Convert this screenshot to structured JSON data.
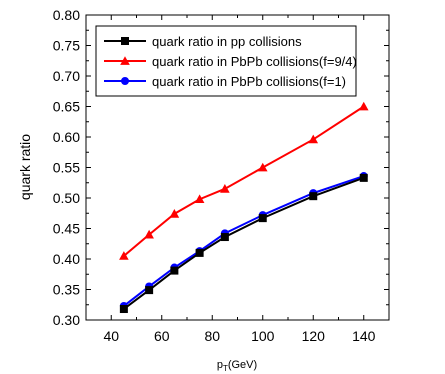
{
  "chart_data": {
    "type": "line",
    "xlabel_main": "p",
    "xlabel_sub": "T",
    "xlabel_unit": "(GeV)",
    "ylabel": "quark ratio",
    "xlim": [
      30,
      150
    ],
    "ylim": [
      0.3,
      0.8
    ],
    "x_ticks": [
      40,
      60,
      80,
      100,
      120,
      140
    ],
    "y_ticks": [
      "0.30",
      "0.35",
      "0.40",
      "0.45",
      "0.50",
      "0.55",
      "0.60",
      "0.65",
      "0.70",
      "0.75",
      "0.80"
    ],
    "legend_position": "top-left",
    "x": [
      45,
      55,
      65,
      75,
      85,
      100,
      120,
      140
    ],
    "series": [
      {
        "name": "quark ratio in pp collisions",
        "color": "#000000",
        "marker": "square",
        "values": [
          0.318,
          0.349,
          0.381,
          0.41,
          0.436,
          0.467,
          0.503,
          0.533
        ]
      },
      {
        "name": "quark ratio in PbPb collisions(f=9/4)",
        "color": "#ff0000",
        "marker": "triangle",
        "values": [
          0.405,
          0.44,
          0.474,
          0.498,
          0.515,
          0.55,
          0.596,
          0.65
        ]
      },
      {
        "name": "quark ratio in PbPb collisions(f=1)",
        "color": "#0000ff",
        "marker": "circle",
        "values": [
          0.323,
          0.355,
          0.386,
          0.413,
          0.442,
          0.472,
          0.508,
          0.536
        ]
      }
    ]
  }
}
